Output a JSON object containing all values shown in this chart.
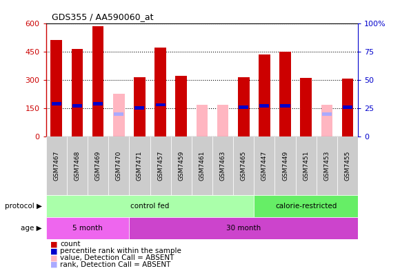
{
  "title": "GDS355 / AA590060_at",
  "samples": [
    "GSM7467",
    "GSM7468",
    "GSM7469",
    "GSM7470",
    "GSM7471",
    "GSM7457",
    "GSM7459",
    "GSM7461",
    "GSM7463",
    "GSM7465",
    "GSM7447",
    "GSM7449",
    "GSM7451",
    "GSM7453",
    "GSM7455"
  ],
  "red_count": [
    510,
    465,
    585,
    0,
    315,
    470,
    320,
    0,
    0,
    315,
    435,
    450,
    310,
    0,
    305
  ],
  "blue_rank_pct": [
    29,
    27,
    29,
    0,
    25,
    28,
    0,
    0,
    0,
    26,
    27,
    27,
    0,
    0,
    26
  ],
  "pink_value": [
    0,
    0,
    0,
    225,
    0,
    0,
    0,
    168,
    168,
    0,
    0,
    0,
    0,
    168,
    0
  ],
  "lightblue_rank_pct": [
    0,
    0,
    0,
    20,
    0,
    0,
    0,
    0,
    0,
    0,
    0,
    0,
    0,
    20,
    0
  ],
  "absent_flag": [
    false,
    false,
    false,
    true,
    false,
    false,
    false,
    true,
    true,
    false,
    false,
    false,
    false,
    true,
    false
  ],
  "ylim_left": [
    0,
    600
  ],
  "ylim_right": [
    0,
    100
  ],
  "yticks_left": [
    0,
    150,
    300,
    450,
    600
  ],
  "yticks_right": [
    0,
    25,
    50,
    75,
    100
  ],
  "protocol_groups": [
    {
      "label": "control fed",
      "start": 0,
      "end": 9,
      "color": "#aaffaa"
    },
    {
      "label": "calorie-restricted",
      "start": 10,
      "end": 14,
      "color": "#66ee66"
    }
  ],
  "age_groups": [
    {
      "label": "5 month",
      "start": 0,
      "end": 3,
      "color": "#ee66ee"
    },
    {
      "label": "30 month",
      "start": 4,
      "end": 14,
      "color": "#cc44cc"
    }
  ],
  "red_color": "#CC0000",
  "blue_color": "#0000CC",
  "pink_color": "#FFB6C1",
  "lightblue_color": "#AAAAFF",
  "xticklabel_bg": "#CCCCCC",
  "legend_items": [
    {
      "color": "#CC0000",
      "label": "count"
    },
    {
      "color": "#0000CC",
      "label": "percentile rank within the sample"
    },
    {
      "color": "#FFB6C1",
      "label": "value, Detection Call = ABSENT"
    },
    {
      "color": "#AAAAFF",
      "label": "rank, Detection Call = ABSENT"
    }
  ]
}
